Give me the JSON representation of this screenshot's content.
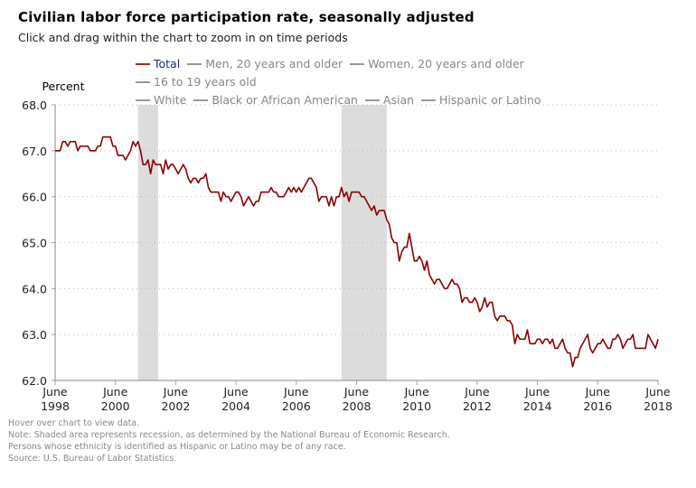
{
  "chart_data": {
    "type": "line",
    "title": "Civilian labor force participation rate, seasonally adjusted",
    "subtitle": "Click and drag within the chart to zoom in on time periods",
    "ylabel": "Percent",
    "xlabel": "",
    "ylim": [
      62.0,
      68.0
    ],
    "yticks": [
      "62.0",
      "63.0",
      "64.0",
      "65.0",
      "66.0",
      "67.0",
      "68.0"
    ],
    "xticks": [
      {
        "month": "June",
        "year": "1998"
      },
      {
        "month": "June",
        "year": "2000"
      },
      {
        "month": "June",
        "year": "2002"
      },
      {
        "month": "June",
        "year": "2004"
      },
      {
        "month": "June",
        "year": "2006"
      },
      {
        "month": "June",
        "year": "2008"
      },
      {
        "month": "June",
        "year": "2010"
      },
      {
        "month": "June",
        "year": "2012"
      },
      {
        "month": "June",
        "year": "2014"
      },
      {
        "month": "June",
        "year": "2016"
      },
      {
        "month": "June",
        "year": "2018"
      }
    ],
    "x_start": "1998-06",
    "x_end": "2018-06",
    "grid": "horizontal-dotted",
    "recessions": [
      {
        "start": "2001-03",
        "end": "2001-11"
      },
      {
        "start": "2007-12",
        "end": "2009-06"
      }
    ],
    "legend_position": "top",
    "legend": [
      {
        "name": "Total",
        "color": "#8b0000",
        "active": true
      },
      {
        "name": "Men, 20 years and older",
        "color": "#999999",
        "active": false
      },
      {
        "name": "Women, 20 years and older",
        "color": "#999999",
        "active": false
      },
      {
        "name": "16 to 19 years old",
        "color": "#999999",
        "active": false
      },
      {
        "name": "White",
        "color": "#999999",
        "active": false
      },
      {
        "name": "Black or African American",
        "color": "#999999",
        "active": false
      },
      {
        "name": "Asian",
        "color": "#999999",
        "active": false
      },
      {
        "name": "Hispanic or Latino",
        "color": "#999999",
        "active": false
      }
    ],
    "series": [
      {
        "name": "Total",
        "color": "#8b0000",
        "start": "1998-06",
        "values": [
          67.0,
          67.0,
          67.0,
          67.2,
          67.2,
          67.1,
          67.2,
          67.2,
          67.2,
          67.0,
          67.1,
          67.1,
          67.1,
          67.1,
          67.0,
          67.0,
          67.0,
          67.1,
          67.1,
          67.3,
          67.3,
          67.3,
          67.3,
          67.1,
          67.1,
          66.9,
          66.9,
          66.9,
          66.8,
          66.9,
          67.0,
          67.2,
          67.1,
          67.2,
          67.0,
          66.7,
          66.7,
          66.8,
          66.5,
          66.8,
          66.7,
          66.7,
          66.7,
          66.5,
          66.8,
          66.6,
          66.7,
          66.7,
          66.6,
          66.5,
          66.6,
          66.7,
          66.6,
          66.4,
          66.3,
          66.4,
          66.4,
          66.3,
          66.4,
          66.4,
          66.5,
          66.2,
          66.1,
          66.1,
          66.1,
          66.1,
          65.9,
          66.1,
          66.0,
          66.0,
          65.9,
          66.0,
          66.1,
          66.1,
          66.0,
          65.8,
          65.9,
          66.0,
          65.9,
          65.8,
          65.9,
          65.9,
          66.1,
          66.1,
          66.1,
          66.1,
          66.2,
          66.1,
          66.1,
          66.0,
          66.0,
          66.0,
          66.1,
          66.2,
          66.1,
          66.2,
          66.1,
          66.2,
          66.1,
          66.2,
          66.3,
          66.4,
          66.4,
          66.3,
          66.2,
          65.9,
          66.0,
          66.0,
          66.0,
          65.8,
          66.0,
          65.8,
          66.0,
          66.0,
          66.2,
          66.0,
          66.1,
          65.9,
          66.1,
          66.1,
          66.1,
          66.1,
          66.0,
          66.0,
          65.9,
          65.8,
          65.7,
          65.8,
          65.6,
          65.7,
          65.7,
          65.7,
          65.5,
          65.4,
          65.1,
          65.0,
          65.0,
          64.6,
          64.8,
          64.9,
          64.9,
          65.2,
          64.9,
          64.6,
          64.6,
          64.7,
          64.6,
          64.4,
          64.6,
          64.3,
          64.2,
          64.1,
          64.2,
          64.2,
          64.1,
          64.0,
          64.0,
          64.1,
          64.2,
          64.1,
          64.1,
          64.0,
          63.7,
          63.8,
          63.8,
          63.7,
          63.7,
          63.8,
          63.7,
          63.5,
          63.6,
          63.8,
          63.6,
          63.7,
          63.7,
          63.4,
          63.3,
          63.4,
          63.4,
          63.4,
          63.3,
          63.3,
          63.2,
          62.8,
          63.0,
          62.9,
          62.9,
          62.9,
          63.1,
          62.8,
          62.8,
          62.8,
          62.9,
          62.9,
          62.8,
          62.9,
          62.9,
          62.8,
          62.9,
          62.7,
          62.7,
          62.8,
          62.9,
          62.7,
          62.6,
          62.6,
          62.3,
          62.5,
          62.5,
          62.7,
          62.8,
          62.9,
          63.0,
          62.7,
          62.6,
          62.7,
          62.8,
          62.8,
          62.9,
          62.8,
          62.7,
          62.7,
          62.9,
          62.9,
          63.0,
          62.9,
          62.7,
          62.8,
          62.9,
          62.9,
          63.0,
          62.7,
          62.7,
          62.7,
          62.7,
          62.7,
          63.0,
          62.9,
          62.8,
          62.7,
          62.9
        ]
      }
    ]
  },
  "notes": [
    "Hover over chart to view data.",
    "Note: Shaded area represents recession, as determined by the National Bureau of Economic Research.",
    "Persons whose ethnicity is identified as Hispanic or Latino may be of any race.",
    "Source: U.S. Bureau of Labor Statistics."
  ]
}
